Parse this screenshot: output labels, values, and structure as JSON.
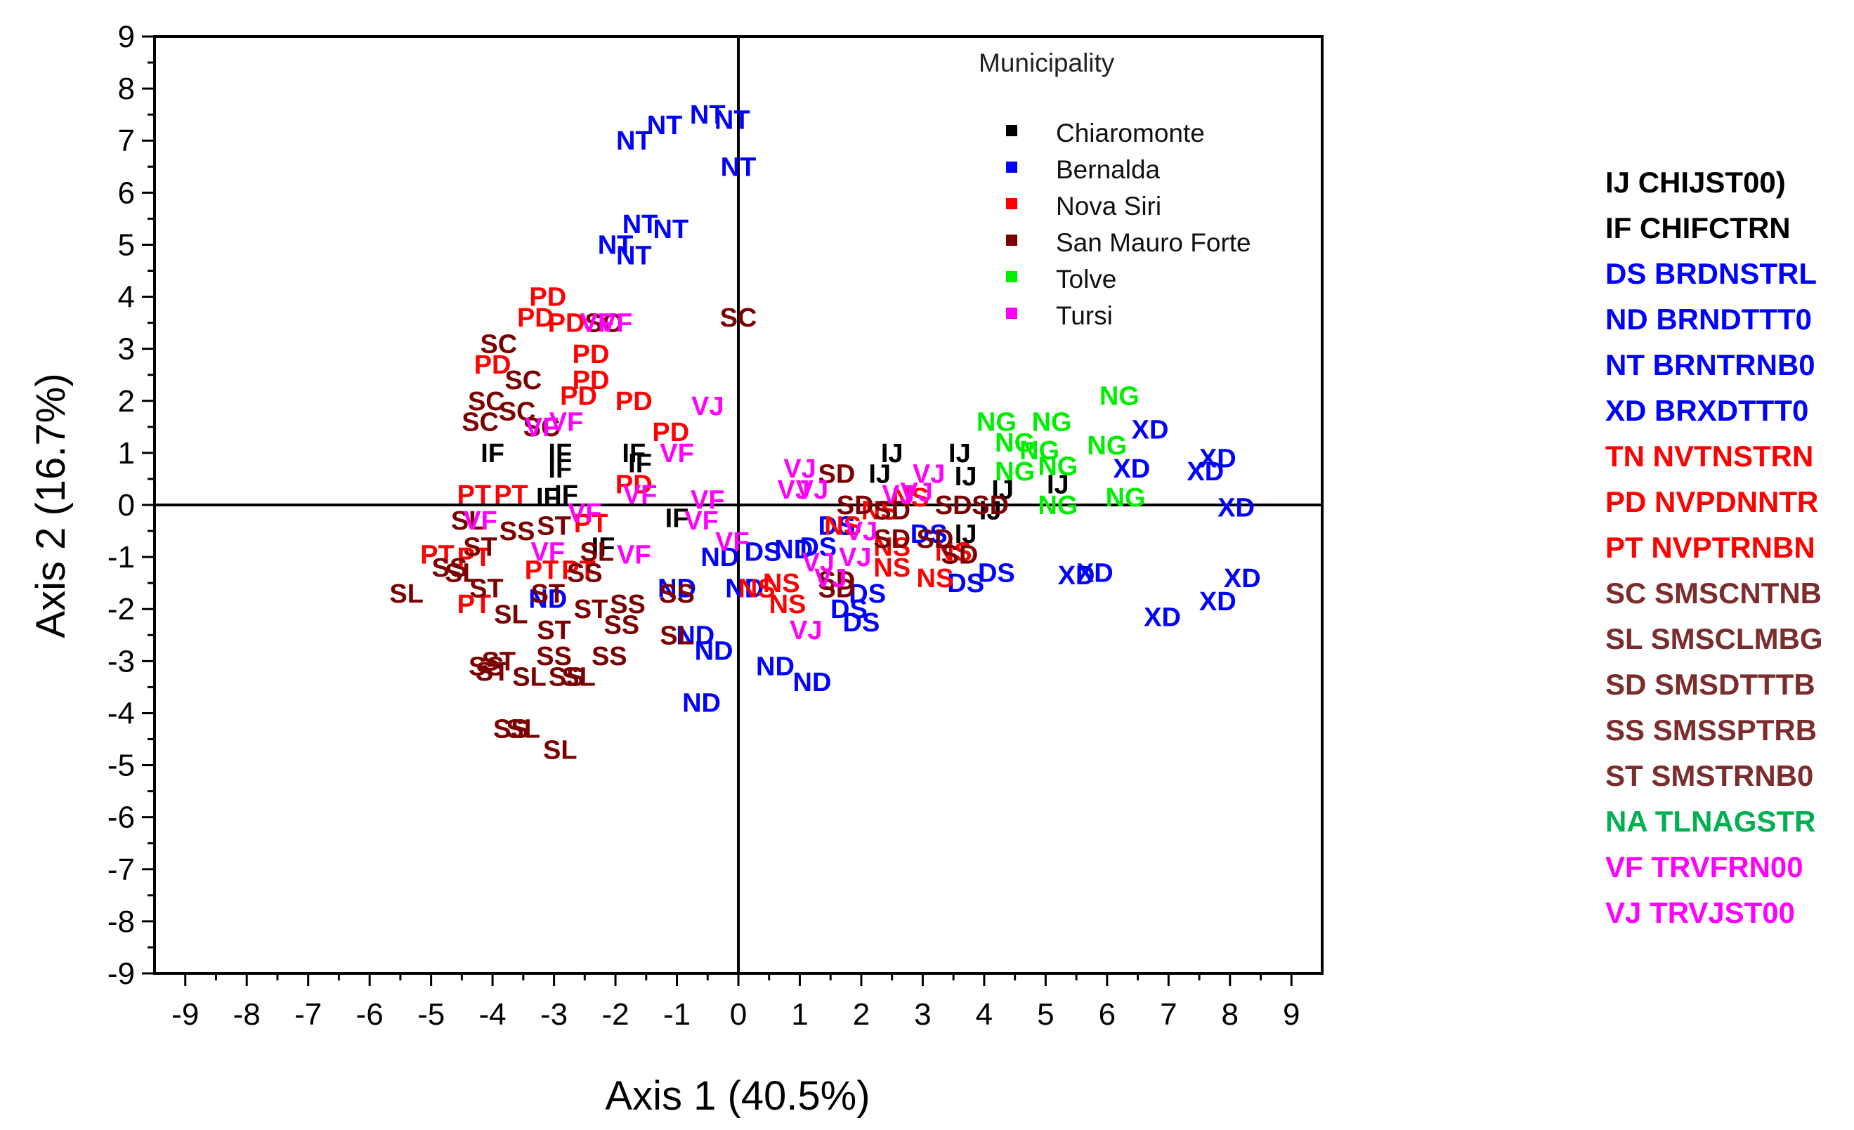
{
  "chart_data": {
    "type": "scatter",
    "xlabel": "Axis 1 (40.5%)",
    "ylabel": "Axis 2 (16.7%)",
    "xlim": [
      -9.5,
      9.5
    ],
    "ylim": [
      -9,
      9
    ],
    "xticks": [
      -9,
      -8,
      -7,
      -6,
      -5,
      -4,
      -3,
      -2,
      -1,
      0,
      1,
      2,
      3,
      4,
      5,
      6,
      7,
      8,
      9
    ],
    "yticks": [
      9,
      8,
      7,
      6,
      5,
      4,
      3,
      2,
      1,
      0,
      -1,
      -2,
      -3,
      -4,
      -5,
      -6,
      -7,
      -8,
      -9
    ],
    "legend_title": "Municipality",
    "legend": [
      {
        "name": "Chiaromonte",
        "color": "#000000"
      },
      {
        "name": "Bernalda",
        "color": "#0000ff"
      },
      {
        "name": "Nova Siri",
        "color": "#ff0000"
      },
      {
        "name": "San Mauro Forte",
        "color": "#7b0000"
      },
      {
        "name": "Tolve",
        "color": "#00ee00"
      },
      {
        "name": "Tursi",
        "color": "#ff00ff"
      }
    ],
    "series": [
      {
        "name": "Chiaromonte",
        "color": "#000000",
        "points": [
          [
            "IF",
            -4,
            1
          ],
          [
            "IF",
            -2.9,
            1
          ],
          [
            "IF",
            -1.7,
            1
          ],
          [
            "IF",
            -2.9,
            0.7
          ],
          [
            "IF",
            -1.6,
            0.8
          ],
          [
            "IF",
            -3.1,
            0.15
          ],
          [
            "IF",
            -2.8,
            0.2
          ],
          [
            "IF",
            -1,
            -0.25
          ],
          [
            "IF",
            -2.2,
            -0.8
          ],
          [
            "IJ",
            2.5,
            1
          ],
          [
            "IJ",
            3.6,
            1
          ],
          [
            "IJ",
            2.3,
            0.6
          ],
          [
            "IJ",
            3.7,
            0.55
          ],
          [
            "IJ",
            4.3,
            0.3
          ],
          [
            "IJ",
            5.2,
            0.4
          ],
          [
            "IJ",
            4.1,
            -0.1
          ],
          [
            "IJ",
            3.7,
            -0.55
          ]
        ]
      },
      {
        "name": "Bernalda",
        "color": "#0000ff",
        "points": [
          [
            "NT",
            -0.5,
            7.5
          ],
          [
            "NT",
            -0.1,
            7.4
          ],
          [
            "NT",
            -1.2,
            7.3
          ],
          [
            "NT",
            -1.7,
            7
          ],
          [
            "NT",
            0,
            6.5
          ],
          [
            "NT",
            -1.6,
            5.4
          ],
          [
            "NT",
            -1.1,
            5.3
          ],
          [
            "NT",
            -2,
            5
          ],
          [
            "NT",
            -1.7,
            4.8
          ],
          [
            "ND",
            -0.3,
            -1
          ],
          [
            "ND",
            -1,
            -1.6
          ],
          [
            "ND",
            0.1,
            -1.6
          ],
          [
            "ND",
            -3.1,
            -1.8
          ],
          [
            "ND",
            -0.7,
            -2.5
          ],
          [
            "ND",
            -0.4,
            -2.8
          ],
          [
            "ND",
            0.6,
            -3.1
          ],
          [
            "ND",
            1.2,
            -3.4
          ],
          [
            "ND",
            -0.6,
            -3.8
          ],
          [
            "ND",
            0.9,
            -0.85
          ],
          [
            "DS",
            0.4,
            -0.9
          ],
          [
            "DS",
            1.3,
            -0.8
          ],
          [
            "DS",
            1.6,
            -0.4
          ],
          [
            "DS",
            3.1,
            -0.55
          ],
          [
            "DS",
            4.2,
            -1.3
          ],
          [
            "DS",
            3.7,
            -1.5
          ],
          [
            "DS",
            2.1,
            -1.7
          ],
          [
            "DS",
            1.8,
            -2
          ],
          [
            "DS",
            2,
            -2.25
          ],
          [
            "XD",
            6.7,
            1.45
          ],
          [
            "XD",
            6.4,
            0.7
          ],
          [
            "XD",
            7.8,
            0.9
          ],
          [
            "XD",
            7.6,
            0.65
          ],
          [
            "XD",
            8.1,
            -0.05
          ],
          [
            "XD",
            5.8,
            -1.3
          ],
          [
            "XD",
            5.5,
            -1.35
          ],
          [
            "XD",
            8.2,
            -1.4
          ],
          [
            "XD",
            7.8,
            -1.85
          ],
          [
            "XD",
            6.9,
            -2.15
          ]
        ]
      },
      {
        "name": "Nova Siri",
        "color": "#ff0000",
        "points": [
          [
            "PD",
            -3.1,
            4
          ],
          [
            "PD",
            -3.3,
            3.6
          ],
          [
            "PD",
            -2.8,
            3.5
          ],
          [
            "PD",
            -4,
            2.7
          ],
          [
            "PD",
            -2.4,
            2.9
          ],
          [
            "PD",
            -2.4,
            2.4
          ],
          [
            "PD",
            -2.6,
            2.1
          ],
          [
            "PD",
            -1.7,
            2
          ],
          [
            "PD",
            -1.1,
            1.4
          ],
          [
            "PD",
            -1.7,
            0.4
          ],
          [
            "PT",
            -4.3,
            0.2
          ],
          [
            "PT",
            -3.7,
            0.2
          ],
          [
            "PT",
            -2.4,
            -0.35
          ],
          [
            "PT",
            -4.9,
            -0.95
          ],
          [
            "PT",
            -4.3,
            -1
          ],
          [
            "PT",
            -3.2,
            -1.25
          ],
          [
            "PT",
            -2.6,
            -1.25
          ],
          [
            "PT",
            -4.3,
            -1.9
          ],
          [
            "NS",
            1.7,
            -0.4
          ],
          [
            "NS",
            2.3,
            -0.1
          ],
          [
            "NS",
            2.8,
            0.15
          ],
          [
            "NS",
            2.5,
            -0.8
          ],
          [
            "NS",
            3.5,
            -0.9
          ],
          [
            "NS",
            2.5,
            -1.2
          ],
          [
            "NS",
            3.2,
            -1.4
          ],
          [
            "NS",
            0.3,
            -1.6
          ],
          [
            "NS",
            0.7,
            -1.5
          ],
          [
            "NS",
            0.8,
            -1.9
          ]
        ]
      },
      {
        "name": "San Mauro Forte",
        "color": "#7b0000",
        "points": [
          [
            "SC",
            0,
            3.6
          ],
          [
            "SC",
            -3.9,
            3.1
          ],
          [
            "SC",
            -3.5,
            2.4
          ],
          [
            "SC",
            -4.1,
            2
          ],
          [
            "SC",
            -3.6,
            1.8
          ],
          [
            "SC",
            -4.2,
            1.6
          ],
          [
            "SC",
            -3.2,
            1.5
          ],
          [
            "SC",
            -2.2,
            3.5
          ],
          [
            "SL",
            -5.4,
            -1.7
          ],
          [
            "SL",
            -4.5,
            -1.3
          ],
          [
            "SL",
            -3.7,
            -2.1
          ],
          [
            "SL",
            -2.3,
            -0.9
          ],
          [
            "SL",
            -3.4,
            -3.3
          ],
          [
            "SL",
            -2.6,
            -3.3
          ],
          [
            "SL",
            -3.5,
            -4.3
          ],
          [
            "SL",
            -2.9,
            -4.7
          ],
          [
            "SL",
            -1,
            -2.5
          ],
          [
            "SL",
            -4.4,
            -0.3
          ],
          [
            "SS",
            -4.7,
            -1.2
          ],
          [
            "SS",
            -2.5,
            -1.3
          ],
          [
            "SS",
            -1.8,
            -1.9
          ],
          [
            "SS",
            -1.9,
            -2.3
          ],
          [
            "SS",
            -3,
            -2.9
          ],
          [
            "SS",
            -2.1,
            -2.9
          ],
          [
            "SS",
            -2.8,
            -3.3
          ],
          [
            "SS",
            -3.7,
            -4.3
          ],
          [
            "SS",
            -1,
            -1.7
          ],
          [
            "SS",
            -4.1,
            -3.1
          ],
          [
            "SS",
            -3.6,
            -0.5
          ],
          [
            "ST",
            -4.2,
            -0.8
          ],
          [
            "ST",
            -4.1,
            -1.6
          ],
          [
            "ST",
            -3.1,
            -1.7
          ],
          [
            "ST",
            -2.4,
            -2
          ],
          [
            "ST",
            -3,
            -2.4
          ],
          [
            "ST",
            -3.9,
            -3
          ],
          [
            "ST",
            -4,
            -3.2
          ],
          [
            "ST",
            -3,
            -0.4
          ],
          [
            "SD",
            1.6,
            0.6
          ],
          [
            "SD",
            1.9,
            0
          ],
          [
            "SD",
            3.5,
            0
          ],
          [
            "SD",
            4.1,
            0
          ],
          [
            "SD",
            2.5,
            -0.65
          ],
          [
            "SD",
            3.2,
            -0.65
          ],
          [
            "SD",
            3.6,
            -0.95
          ],
          [
            "SD",
            1.6,
            -1.45
          ],
          [
            "SD",
            1.6,
            -1.6
          ],
          [
            "SD",
            2.5,
            -0.1
          ]
        ]
      },
      {
        "name": "Tolve",
        "color": "#00ee00",
        "points": [
          [
            "NG",
            6.2,
            2.1
          ],
          [
            "NG",
            4.2,
            1.6
          ],
          [
            "NG",
            5.1,
            1.6
          ],
          [
            "NG",
            4.5,
            1.2
          ],
          [
            "NG",
            4.9,
            1.05
          ],
          [
            "NG",
            6,
            1.15
          ],
          [
            "NG",
            4.5,
            0.65
          ],
          [
            "NG",
            5.2,
            0.75
          ],
          [
            "NG",
            5.2,
            0
          ],
          [
            "NG",
            6.3,
            0.15
          ]
        ]
      },
      {
        "name": "Tursi",
        "color": "#ff00ff",
        "points": [
          [
            "VF",
            -2,
            3.5
          ],
          [
            "VF",
            -2.3,
            3.5
          ],
          [
            "VF",
            -2.8,
            1.6
          ],
          [
            "VF",
            -3.2,
            1.5
          ],
          [
            "VF",
            -1,
            1
          ],
          [
            "VF",
            -0.5,
            0.1
          ],
          [
            "VF",
            -1.6,
            0.2
          ],
          [
            "VF",
            -4.2,
            -0.3
          ],
          [
            "VF",
            -0.6,
            -0.3
          ],
          [
            "VF",
            -3.1,
            -0.9
          ],
          [
            "VF",
            -1.7,
            -0.95
          ],
          [
            "VF",
            -0.1,
            -0.7
          ],
          [
            "VF",
            -2.5,
            -0.15
          ],
          [
            "VJ",
            -0.5,
            1.9
          ],
          [
            "VJ",
            1,
            0.7
          ],
          [
            "VJ",
            0.9,
            0.3
          ],
          [
            "VJ",
            1.2,
            0.3
          ],
          [
            "VJ",
            3.1,
            0.6
          ],
          [
            "VJ",
            2.6,
            0.2
          ],
          [
            "VJ",
            2.9,
            0.25
          ],
          [
            "VJ",
            1.3,
            -1.1
          ],
          [
            "VJ",
            1.5,
            -1.4
          ],
          [
            "VJ",
            1.9,
            -1
          ],
          [
            "VJ",
            1.1,
            -2.4
          ],
          [
            "VJ",
            2,
            -0.5
          ]
        ]
      }
    ]
  },
  "key": {
    "items": [
      {
        "text": "IJ CHIJST00)",
        "color": "#000000"
      },
      {
        "text": "IF CHIFCTRN",
        "color": "#000000"
      },
      {
        "text": "DS BRDNSTRL",
        "color": "#0000ff"
      },
      {
        "text": "ND BRNDTTT0",
        "color": "#0000ff"
      },
      {
        "text": "NT BRNTRNB0",
        "color": "#0000ff"
      },
      {
        "text": "XD BRXDTTT0",
        "color": "#0000ff"
      },
      {
        "text": "TN NVTNSTRN",
        "color": "#ff0000"
      },
      {
        "text": "PD NVPDNNTR",
        "color": "#ff0000"
      },
      {
        "text": "PT NVPTRNBN",
        "color": "#ff0000"
      },
      {
        "text": "SC SMSCNTNB",
        "color": "#7b2d2d"
      },
      {
        "text": "SL SMSCLMBG",
        "color": "#7b2d2d"
      },
      {
        "text": "SD SMSDTTTB",
        "color": "#7b2d2d"
      },
      {
        "text": "SS SMSSPTRB",
        "color": "#7b2d2d"
      },
      {
        "text": "ST SMSTRNB0",
        "color": "#7b2d2d"
      },
      {
        "text": "NA TLNAGSTR",
        "color": "#00b050"
      },
      {
        "text": "VF TRVFRN00",
        "color": "#ff00ff"
      },
      {
        "text": "VJ TRVJST00",
        "color": "#ff00ff"
      }
    ]
  }
}
